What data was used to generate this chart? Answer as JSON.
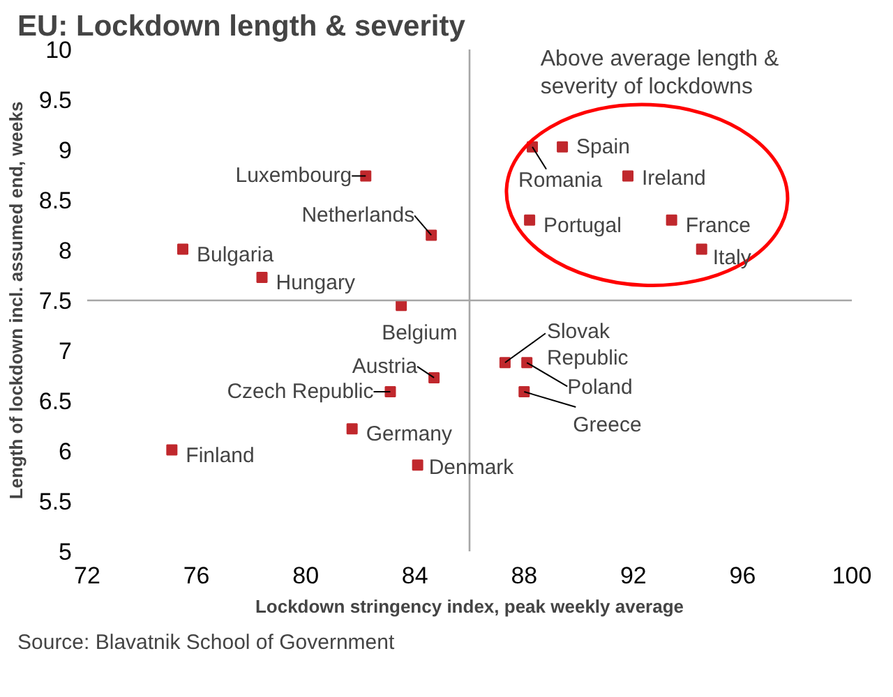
{
  "chart_data": {
    "type": "scatter",
    "title": "EU: Lockdown length & severity",
    "xlabel": "Lockdown stringency index, peak weekly average",
    "ylabel": "Length of lockdown incl. assumed end, weeks",
    "x": [
      82.2,
      84.6,
      75.5,
      78.4,
      83.5,
      88.3,
      89.4,
      91.8,
      88.2,
      93.4,
      94.5,
      84.7,
      83.1,
      81.7,
      75.1,
      84.1,
      87.3,
      88.1,
      88.0
    ],
    "series": [
      {
        "color": "#c0282d",
        "values": [
          8.74,
          8.15,
          8.01,
          7.73,
          7.45,
          9.03,
          9.03,
          8.74,
          8.3,
          8.3,
          8.01,
          6.73,
          6.59,
          6.22,
          6.01,
          5.86,
          6.88,
          6.88,
          6.59
        ]
      }
    ],
    "marker": "square",
    "grid": false,
    "xlim": [
      72,
      100
    ],
    "xticks": [
      72,
      76,
      80,
      84,
      88,
      92,
      96,
      100
    ],
    "ylim": [
      5,
      10
    ],
    "yticks": [
      5,
      5.5,
      6,
      6.5,
      7,
      7.5,
      8,
      8.5,
      9,
      9.5,
      10
    ],
    "ref_lines": [
      {
        "axis": "x",
        "value": 86,
        "color": "#a6a6a6"
      },
      {
        "axis": "y",
        "value": 7.5,
        "color": "#a6a6a6"
      }
    ],
    "annotations": [
      {
        "text": "Luxembourg",
        "x": 82.2,
        "y": 8.74
      },
      {
        "text": "Netherlands",
        "x": 84.6,
        "y": 8.15
      },
      {
        "text": "Bulgaria",
        "x": 75.5,
        "y": 8.01
      },
      {
        "text": "Hungary",
        "x": 78.4,
        "y": 7.73
      },
      {
        "text": "Belgium",
        "x": 83.5,
        "y": 7.45
      },
      {
        "text": "Romania",
        "x": 88.3,
        "y": 9.03
      },
      {
        "text": "Spain",
        "x": 89.4,
        "y": 9.03
      },
      {
        "text": "Ireland",
        "x": 91.8,
        "y": 8.74
      },
      {
        "text": "Portugal",
        "x": 88.2,
        "y": 8.3
      },
      {
        "text": "France",
        "x": 93.4,
        "y": 8.3
      },
      {
        "text": "Italy",
        "x": 94.5,
        "y": 8.01
      },
      {
        "text": "Austria",
        "x": 84.7,
        "y": 6.73
      },
      {
        "text": "Czech Republic",
        "x": 83.1,
        "y": 6.59
      },
      {
        "text": "Germany",
        "x": 81.7,
        "y": 6.22
      },
      {
        "text": "Finland",
        "x": 75.1,
        "y": 6.01
      },
      {
        "text": "Denmark",
        "x": 84.1,
        "y": 5.86
      },
      {
        "text": "Slovak\nRepublic",
        "x": 87.3,
        "y": 6.88
      },
      {
        "text": "Poland",
        "x": 88.1,
        "y": 6.88
      },
      {
        "text": "Greece",
        "x": 88.0,
        "y": 6.59
      },
      "Above average length &\nseverity of lockdowns",
      "Source: Blavatnik School of Government"
    ]
  }
}
